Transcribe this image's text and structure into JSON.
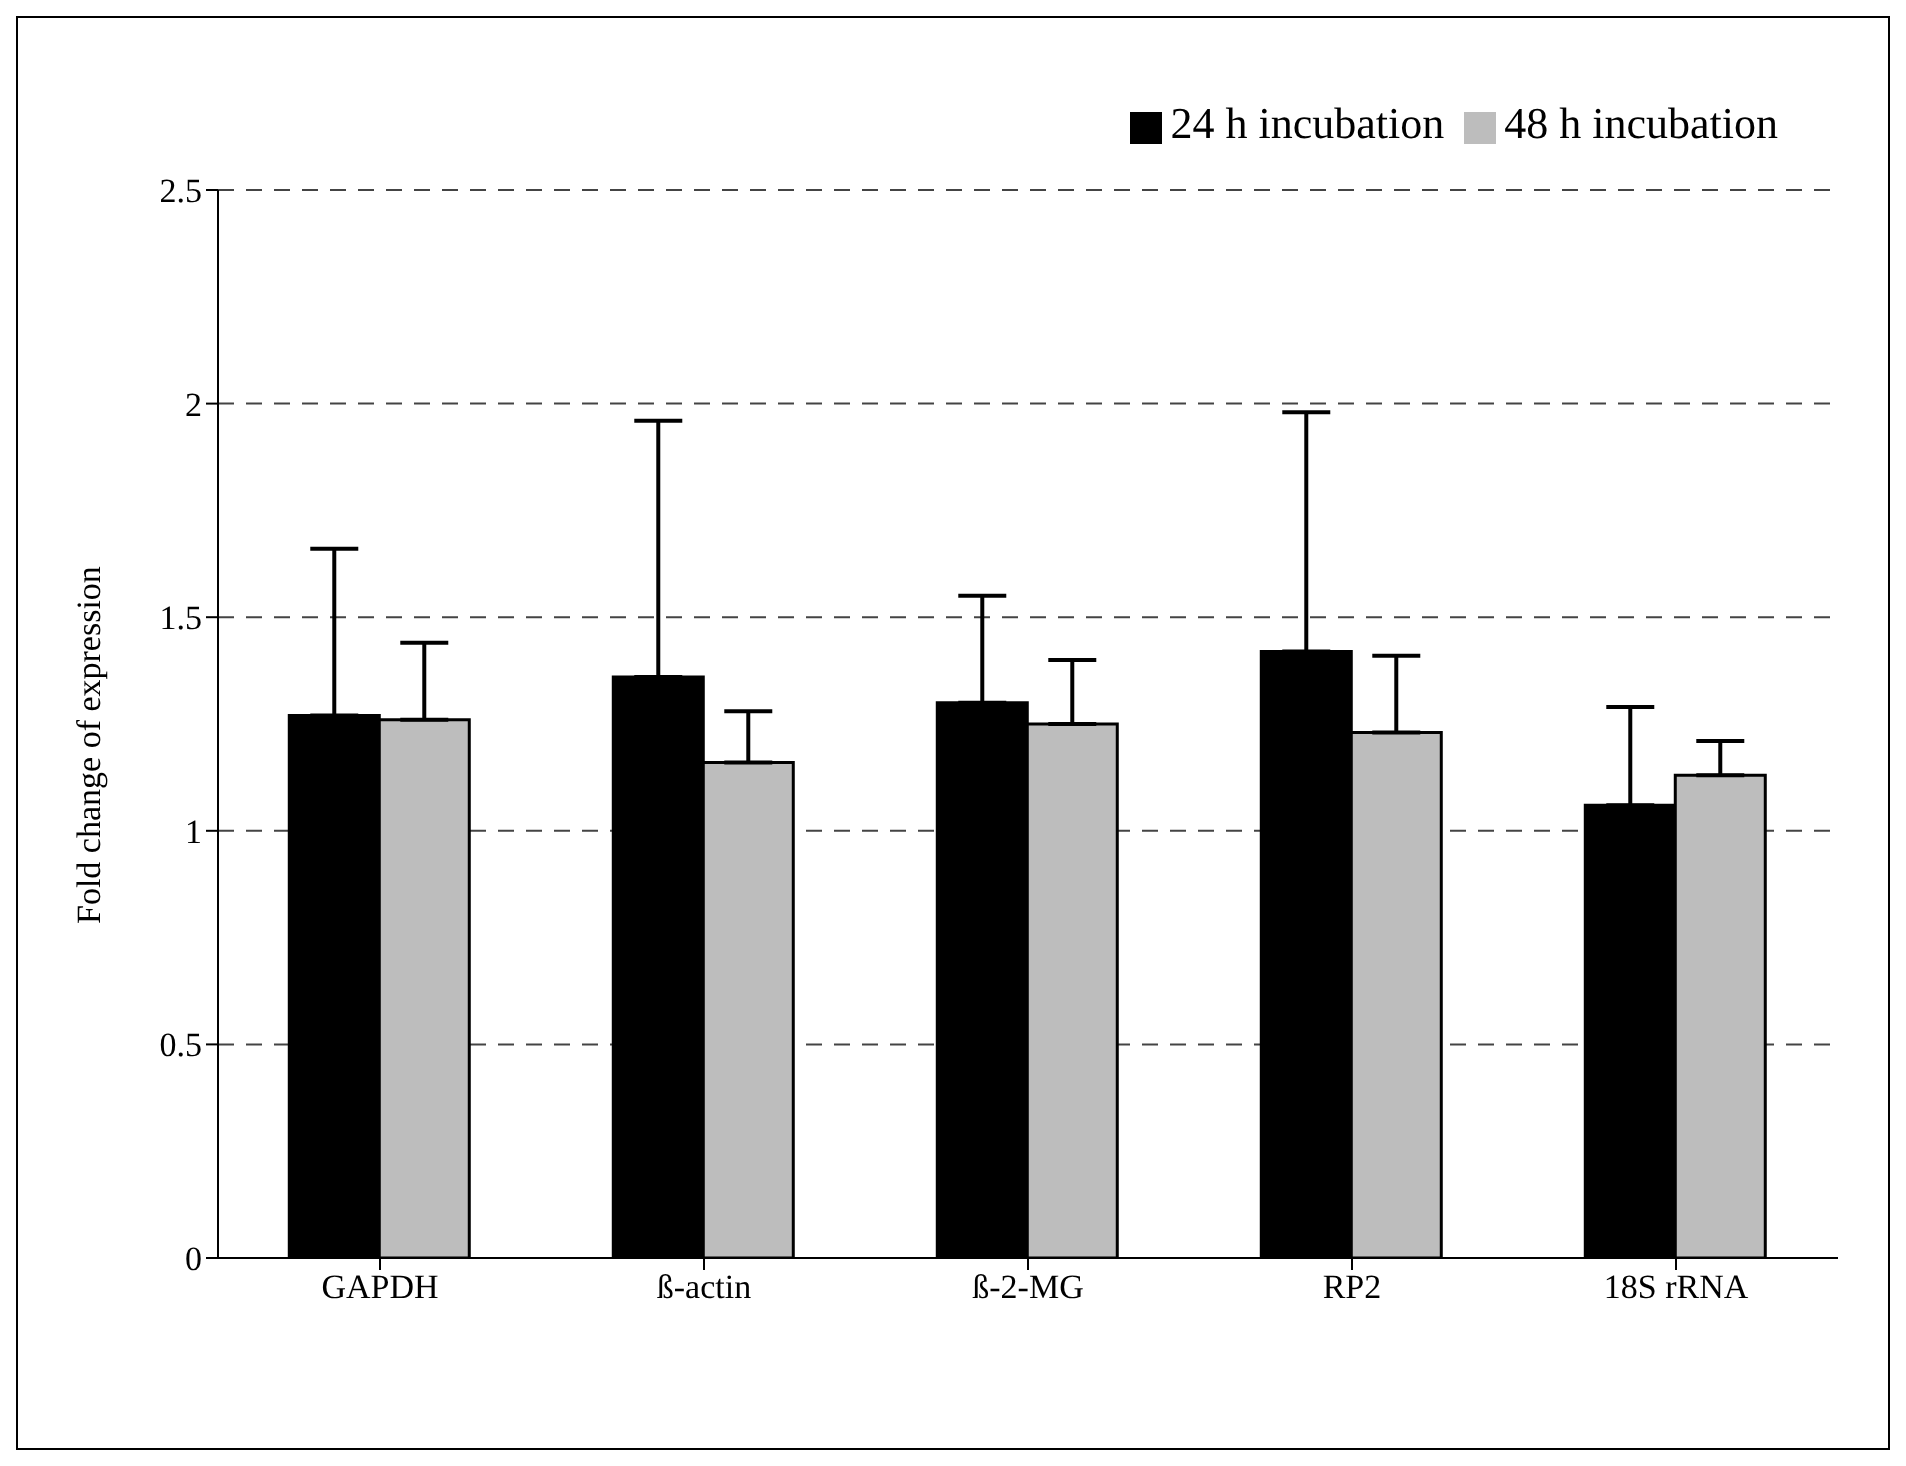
{
  "chart_data": {
    "type": "bar",
    "ylabel": "Fold change of expression",
    "categories": [
      "GAPDH",
      "ß-actin",
      "ß-2-MG",
      "RP2",
      "18S rRNA"
    ],
    "series": [
      {
        "name": "24 h incubation",
        "color": "#000000",
        "values": [
          1.27,
          1.36,
          1.3,
          1.42,
          1.06
        ],
        "errors": [
          [
            1.27,
            1.66
          ],
          [
            1.36,
            1.96
          ],
          [
            1.3,
            1.55
          ],
          [
            1.42,
            1.98
          ],
          [
            1.06,
            1.29
          ]
        ]
      },
      {
        "name": "48 h incubation",
        "color": "#bdbdbd",
        "values": [
          1.26,
          1.16,
          1.25,
          1.23,
          1.13
        ],
        "errors": [
          [
            1.26,
            1.44
          ],
          [
            1.16,
            1.28
          ],
          [
            1.25,
            1.4
          ],
          [
            1.23,
            1.41
          ],
          [
            1.13,
            1.21
          ]
        ]
      }
    ],
    "ylim": [
      0,
      2.5
    ],
    "yticks": [
      0,
      0.5,
      1,
      1.5,
      2,
      2.5
    ],
    "grid": "y",
    "legend": "top right"
  }
}
